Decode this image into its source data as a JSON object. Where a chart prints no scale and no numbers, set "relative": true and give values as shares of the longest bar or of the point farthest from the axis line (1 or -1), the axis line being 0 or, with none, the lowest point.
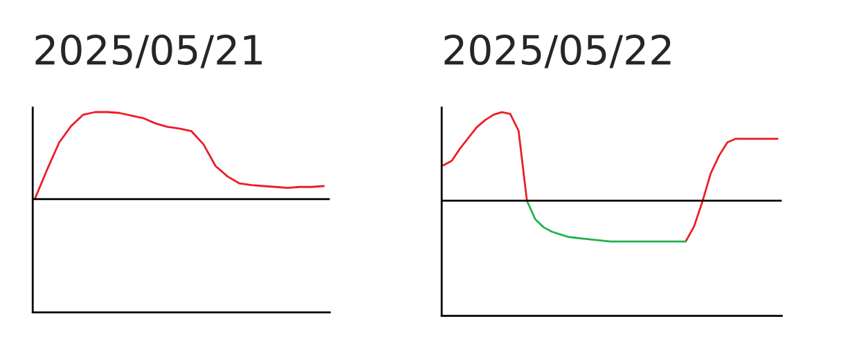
{
  "chart_data": [
    {
      "type": "line",
      "title": "2025/05/21",
      "relative": true,
      "categories": [
        null,
        null,
        null,
        null,
        null,
        null,
        null,
        null,
        null,
        null,
        null,
        null,
        null,
        null,
        null,
        null,
        null,
        null,
        null,
        null,
        null,
        null,
        null,
        null,
        null
      ],
      "series": [
        {
          "color": "#ed1c24",
          "values": [
            0.01,
            0.34,
            0.65,
            0.84,
            0.97,
            1.0,
            1.0,
            0.99,
            0.96,
            0.93,
            0.87,
            0.83,
            0.81,
            0.78,
            0.63,
            0.38,
            0.26,
            0.18,
            0.16,
            0.15,
            0.14,
            0.13,
            0.14,
            0.14,
            0.15
          ]
        }
      ]
    },
    {
      "type": "line",
      "title": "2025/05/22",
      "relative": true,
      "categories": [
        null,
        null,
        null,
        null,
        null,
        null,
        null,
        null,
        null,
        null,
        null,
        null,
        null,
        null,
        null,
        null,
        null,
        null,
        null,
        null,
        null,
        null,
        null,
        null,
        null,
        null,
        null,
        null,
        null,
        null,
        null,
        null,
        null,
        null,
        null,
        null,
        null,
        null,
        null,
        null,
        null
      ],
      "series": [
        {
          "color": "#ed1c24",
          "values": [
            0.4,
            0.45,
            0.59,
            0.71,
            0.83,
            0.91,
            0.97,
            1.0,
            0.98,
            0.79,
            0.0,
            null,
            null,
            null,
            null,
            null,
            null,
            null,
            null,
            null,
            null,
            null,
            null,
            null,
            null,
            null,
            null,
            null,
            null,
            -0.46,
            -0.29,
            -0.01,
            0.31,
            0.51,
            0.66,
            0.7,
            0.7,
            0.7,
            0.7,
            0.7,
            0.7
          ]
        },
        {
          "color": "#22b14c",
          "values": [
            null,
            null,
            null,
            null,
            null,
            null,
            null,
            null,
            null,
            null,
            0.0,
            -0.21,
            -0.3,
            -0.35,
            -0.38,
            -0.41,
            -0.42,
            -0.43,
            -0.44,
            -0.45,
            -0.46,
            -0.46,
            -0.46,
            -0.46,
            -0.46,
            -0.46,
            -0.46,
            -0.46,
            -0.46,
            -0.46,
            null,
            null,
            null,
            null,
            null,
            null,
            null,
            null,
            null,
            null,
            null
          ]
        }
      ]
    }
  ]
}
